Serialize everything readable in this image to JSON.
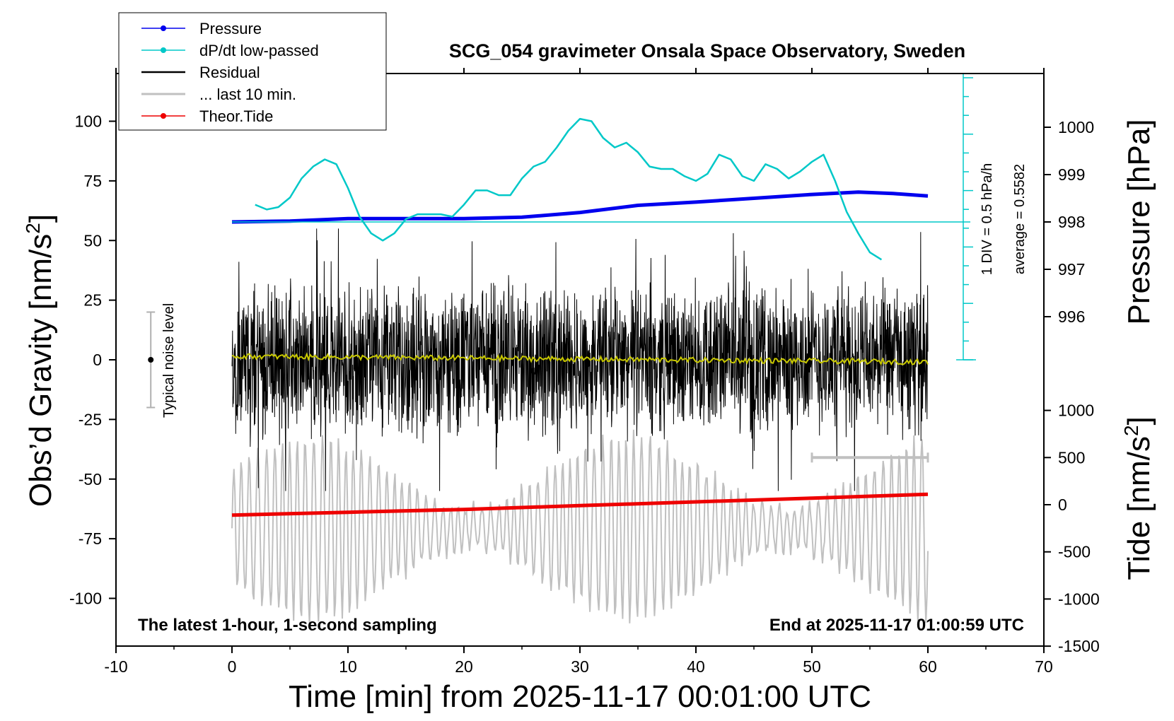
{
  "chart_data": {
    "type": "line",
    "title": "SCG_054 gravimeter Onsala Space Observatory, Sweden",
    "xlabel": "Time [min] from 2025-11-17 00:01:00 UTC",
    "ylabel_left": "Obs’d Gravity [nm/s",
    "ylabel_left_sup": "2",
    "ylabel_left_close": "]",
    "ylabel_right_pressure": "Pressure [hPa]",
    "ylabel_right_tide": "Tide [nm/s",
    "ylabel_right_tide_sup": "2",
    "ylabel_right_tide_close": "]",
    "xlim": [
      -10,
      70
    ],
    "ylim": [
      -120,
      120
    ],
    "x_ticks": [
      -10,
      0,
      10,
      20,
      30,
      40,
      50,
      60,
      70
    ],
    "y_ticks": [
      100,
      75,
      50,
      25,
      0,
      -25,
      -50,
      -75,
      -100
    ],
    "pressure_ylim": [
      995.3,
      1001.5
    ],
    "pressure_ticks": [
      1000,
      999,
      998,
      997,
      996
    ],
    "tide_ticks": [
      1000,
      500,
      0,
      -500,
      -1000,
      -1500
    ],
    "tide_ylim": [
      -1500,
      1000
    ],
    "legend": [
      {
        "name": "Pressure",
        "color": "#0000ee"
      },
      {
        "name": "dP/dt low-passed",
        "color": "#00c8c8"
      },
      {
        "name": "Residual",
        "color": "#000000"
      },
      {
        "name": "... last 10 min.",
        "color": "#c0c0c0"
      },
      {
        "name": "Theor.Tide",
        "color": "#ee0000"
      }
    ],
    "legend_placement": "top-left",
    "noise_label": "Typical noise level",
    "noise_bar": {
      "x": -7,
      "center": 0,
      "half": 20
    },
    "dpdt_scale_label": "1 DIV = 0.5 hPa/h",
    "dpdt_average_label": "average = 0.5582",
    "note_left": "The latest 1-hour, 1-second sampling",
    "note_right": "End at 2025-11-17 01:00:59 UTC",
    "series": [
      {
        "name": "Pressure",
        "axis": "pressure",
        "color": "#0000ee",
        "x": [
          0,
          5,
          10,
          15,
          20,
          25,
          30,
          35,
          40,
          45,
          50,
          54,
          57,
          60
        ],
        "values": [
          998.0,
          998.02,
          998.07,
          998.07,
          998.07,
          998.1,
          998.2,
          998.35,
          998.42,
          998.5,
          998.58,
          998.63,
          998.6,
          998.55
        ]
      },
      {
        "name": "dP/dt low-passed",
        "axis": "gravity",
        "color": "#00c8c8",
        "x": [
          2,
          3,
          4,
          5,
          6,
          7,
          8,
          9,
          10,
          11,
          12,
          13,
          14,
          15,
          16,
          17,
          18,
          19,
          20,
          21,
          22,
          23,
          24,
          25,
          26,
          27,
          28,
          29,
          30,
          31,
          32,
          33,
          34,
          35,
          36,
          37,
          38,
          39,
          40,
          41,
          42,
          43,
          44,
          45,
          46,
          47,
          48,
          49,
          50,
          51,
          52,
          53,
          54,
          55,
          56
        ],
        "values": [
          65,
          63,
          64,
          68,
          76,
          81,
          84,
          82,
          72,
          60,
          53,
          50,
          53,
          59,
          61,
          61,
          61,
          60,
          65,
          71,
          71,
          69,
          69,
          76,
          81,
          83,
          89,
          96,
          101,
          100,
          93,
          89,
          91,
          87,
          81,
          80,
          80,
          77,
          75,
          78,
          86,
          84,
          77,
          75,
          82,
          80,
          76,
          79,
          83,
          86,
          75,
          62,
          53,
          45,
          42
        ]
      },
      {
        "name": "Theor.Tide",
        "axis": "tide",
        "color": "#ee0000",
        "x": [
          0,
          10,
          20,
          30,
          40,
          50,
          60
        ],
        "values": [
          -110,
          -80,
          -50,
          -10,
          30,
          70,
          110
        ]
      }
    ],
    "residual": {
      "name": "Residual",
      "x_start": 0,
      "x_end": 60,
      "amplitude": 25,
      "peak": 55
    },
    "residual_smooth": {
      "name": "smoothed residual",
      "color": "#c8c800",
      "x_start": 0,
      "x_end": 60
    },
    "last_10_min": {
      "name": "... last 10 min.",
      "axis": "tide",
      "x_start": 50,
      "x_end": 60,
      "y": 500
    }
  }
}
